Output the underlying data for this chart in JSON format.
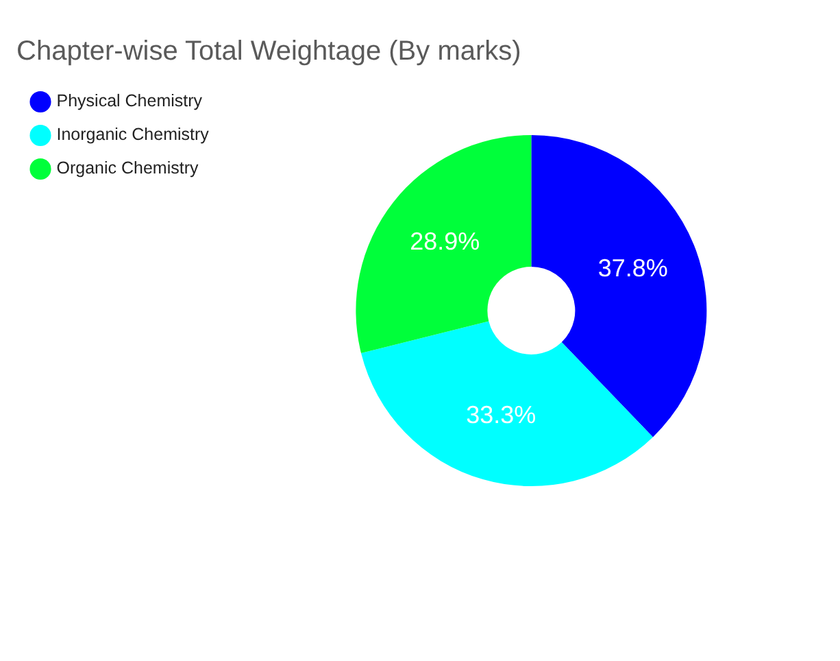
{
  "chart_data": {
    "type": "donut",
    "title": "Chapter-wise Total Weightage (By marks)",
    "categories": [
      "Physical Chemistry",
      "Inorganic Chemistry",
      "Organic Chemistry"
    ],
    "values": [
      37.8,
      33.3,
      28.9
    ],
    "colors": [
      "#0000ff",
      "#00ffff",
      "#00ff3a"
    ],
    "value_labels": [
      "37.8%",
      "33.3%",
      "28.9%"
    ],
    "legend": "top left"
  }
}
